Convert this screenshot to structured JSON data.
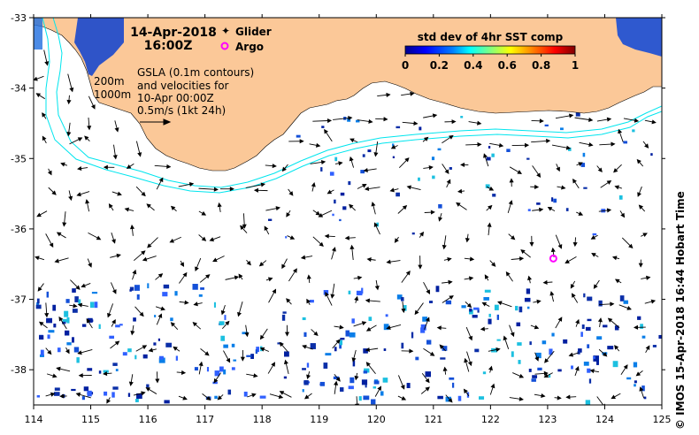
{
  "header": {
    "date": "14-Apr-2018",
    "time": "16:00Z"
  },
  "legend": {
    "glider_label": "Glider",
    "argo_label": "Argo",
    "glider_color": "#ff00ff",
    "argo_color": "#ff00ff"
  },
  "annotations": {
    "contour_200m": "200m",
    "contour_1000m": "1000m",
    "gsla_line1": "GSLA (0.1m contours)",
    "gsla_line2": "and velocities for",
    "gsla_line3": "10-Apr 00:00Z",
    "scale_label": "0.5m/s (1kt 24h)"
  },
  "colorbar": {
    "title": "std dev of 4hr SST comp",
    "ticks": [
      "0",
      "0.2",
      "0.4",
      "0.6",
      "0.8",
      "1"
    ],
    "stops": [
      "#00008f",
      "#0000ff",
      "#0080ff",
      "#00ffff",
      "#80ff80",
      "#ffff00",
      "#ff8000",
      "#ff0000",
      "#800000"
    ]
  },
  "axes": {
    "x_ticks": [
      "114",
      "115",
      "116",
      "117",
      "118",
      "119",
      "120",
      "121",
      "122",
      "123",
      "124",
      "125"
    ],
    "y_ticks": [
      "-33",
      "-34",
      "-35",
      "-36",
      "-37",
      "-38"
    ],
    "lon_range": [
      114,
      125
    ],
    "lat_range": [
      -38.5,
      -33
    ]
  },
  "credit": "© IMOS 15-Apr-2018 16:44 Hobart Time",
  "argo_float": {
    "lon": 123.1,
    "lat": -36.42
  },
  "colors": {
    "land": "#fbc898",
    "ocean": "#ffffff",
    "contour": "#00e5ee",
    "arrow": "#000000"
  }
}
